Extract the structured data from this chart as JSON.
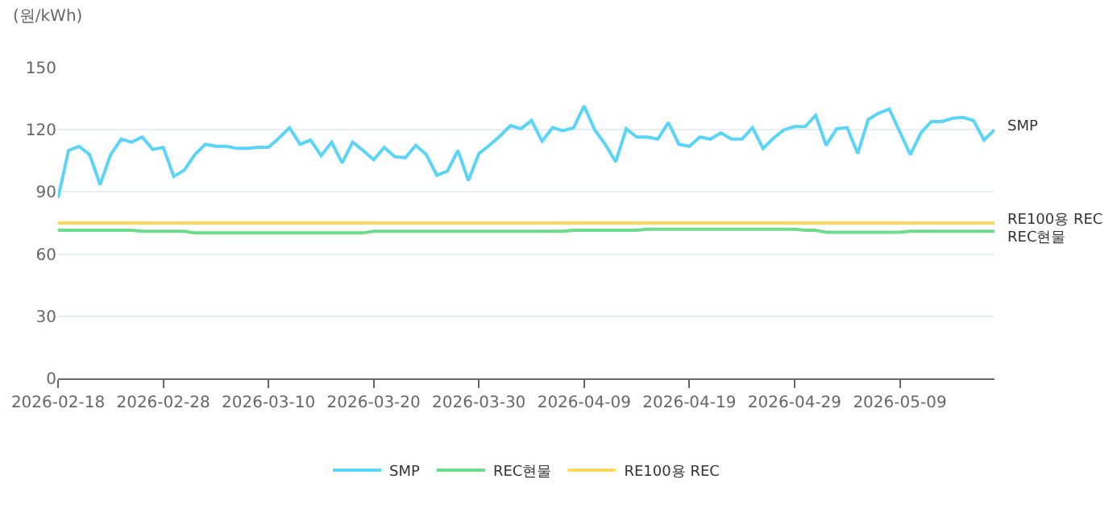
{
  "chart_data": {
    "type": "line",
    "ylabel": "(원/kWh)",
    "x": [
      "2026-02-18",
      "2026-02-19",
      "2026-02-20",
      "2026-02-21",
      "2026-02-22",
      "2026-02-23",
      "2026-02-24",
      "2026-02-25",
      "2026-02-26",
      "2026-02-27",
      "2026-02-28",
      "2026-03-01",
      "2026-03-02",
      "2026-03-03",
      "2026-03-04",
      "2026-03-05",
      "2026-03-06",
      "2026-03-07",
      "2026-03-08",
      "2026-03-09",
      "2026-03-10",
      "2026-03-11",
      "2026-03-12",
      "2026-03-13",
      "2026-03-14",
      "2026-03-15",
      "2026-03-16",
      "2026-03-17",
      "2026-03-18",
      "2026-03-19",
      "2026-03-20",
      "2026-03-21",
      "2026-03-22",
      "2026-03-23",
      "2026-03-24",
      "2026-03-25",
      "2026-03-26",
      "2026-03-27",
      "2026-03-28",
      "2026-03-29",
      "2026-03-30",
      "2026-03-31",
      "2026-04-01",
      "2026-04-02",
      "2026-04-03",
      "2026-04-04",
      "2026-04-05",
      "2026-04-06",
      "2026-04-07",
      "2026-04-08",
      "2026-04-09",
      "2026-04-10",
      "2026-04-11",
      "2026-04-12",
      "2026-04-13",
      "2026-04-14",
      "2026-04-15",
      "2026-04-16",
      "2026-04-17",
      "2026-04-18",
      "2026-04-19",
      "2026-04-20",
      "2026-04-21",
      "2026-04-22",
      "2026-04-23",
      "2026-04-24",
      "2026-04-25",
      "2026-04-26",
      "2026-04-27",
      "2026-04-28",
      "2026-04-29",
      "2026-04-30",
      "2026-05-01",
      "2026-05-02",
      "2026-05-03",
      "2026-05-04",
      "2026-05-05",
      "2026-05-06",
      "2026-05-07",
      "2026-05-08",
      "2026-05-09",
      "2026-05-10",
      "2026-05-11",
      "2026-05-12",
      "2026-05-13",
      "2026-05-14",
      "2026-05-15",
      "2026-05-16",
      "2026-05-17",
      "2026-05-18"
    ],
    "series": [
      {
        "name": "SMP",
        "color": "#5ad4f7",
        "values": [
          87,
          110,
          112,
          108,
          93.5,
          108,
          115.5,
          114,
          116.5,
          110.5,
          111.5,
          97.5,
          100.5,
          108,
          113,
          112,
          112,
          111,
          111,
          111.5,
          111.5,
          116,
          121,
          113,
          115,
          107.5,
          114,
          104,
          114,
          110,
          105.5,
          111.5,
          107,
          106.5,
          112.5,
          108,
          98,
          100,
          110,
          95.5,
          108.5,
          112.5,
          117,
          122,
          120.5,
          124.5,
          114.5,
          121,
          119.5,
          121,
          131.5,
          120,
          113,
          104.5,
          120.5,
          116.5,
          116.5,
          115.5,
          123.5,
          113,
          112,
          116.5,
          115.5,
          118.5,
          115.5,
          115.5,
          121,
          111,
          116,
          120,
          121.5,
          121.5,
          127,
          112.5,
          120.5,
          121,
          108.5,
          125,
          128,
          130,
          119,
          108,
          118.5,
          124,
          124,
          125.5,
          126,
          124.5,
          115,
          120
        ]
      },
      {
        "name": "REC현물",
        "color": "#6edc8c",
        "values": [
          71.5,
          71.5,
          71.5,
          71.5,
          71.5,
          71.5,
          71.5,
          71.5,
          71,
          71,
          71,
          71,
          71,
          70.2,
          70.2,
          70.2,
          70.2,
          70.2,
          70.2,
          70.2,
          70.2,
          70.2,
          70.2,
          70.2,
          70.2,
          70.2,
          70.2,
          70.2,
          70.2,
          70.2,
          71,
          71,
          71,
          71,
          71,
          71,
          71,
          71,
          71,
          71,
          71,
          71,
          71,
          71,
          71,
          71,
          71,
          71,
          71,
          71.5,
          71.5,
          71.5,
          71.5,
          71.5,
          71.5,
          71.5,
          72,
          72,
          72,
          72,
          72,
          72,
          72,
          72,
          72,
          72,
          72,
          72,
          72,
          72,
          72,
          71.5,
          71.5,
          70.5,
          70.5,
          70.5,
          70.5,
          70.5,
          70.5,
          70.5,
          70.5,
          71,
          71,
          71,
          71,
          71,
          71,
          71,
          71,
          71
        ]
      },
      {
        "name": "RE100용 REC",
        "color": "#fcd95e",
        "values": [
          75,
          75,
          75,
          75,
          75,
          75,
          75,
          75,
          75,
          75,
          75,
          75,
          75,
          75,
          75,
          75,
          75,
          75,
          75,
          75,
          75,
          75,
          75,
          75,
          75,
          75,
          75,
          75,
          75,
          75,
          75,
          75,
          75,
          75,
          75,
          75,
          75,
          75,
          75,
          75,
          75,
          75,
          75,
          75,
          75,
          75,
          75,
          75,
          75,
          75,
          75,
          75,
          75,
          75,
          75,
          75,
          75,
          75,
          75,
          75,
          75,
          75,
          75,
          75,
          75,
          75,
          75,
          75,
          75,
          75,
          75,
          75,
          75,
          75,
          75,
          75,
          75,
          75,
          75,
          75,
          75,
          75,
          75,
          75,
          75,
          75,
          75,
          75,
          75,
          75
        ]
      }
    ],
    "xlim": [
      "2026-02-18",
      "2026-05-18"
    ],
    "xticks": [
      "2026-02-18",
      "2026-02-28",
      "2026-03-10",
      "2026-03-20",
      "2026-03-30",
      "2026-04-09",
      "2026-04-19",
      "2026-04-29",
      "2026-05-09"
    ],
    "ylim": [
      0,
      150
    ],
    "yticks": [
      0,
      30,
      60,
      90,
      120,
      150
    ],
    "grid": "y",
    "legend": "bottom",
    "marker": "none",
    "line_style": "solid"
  }
}
